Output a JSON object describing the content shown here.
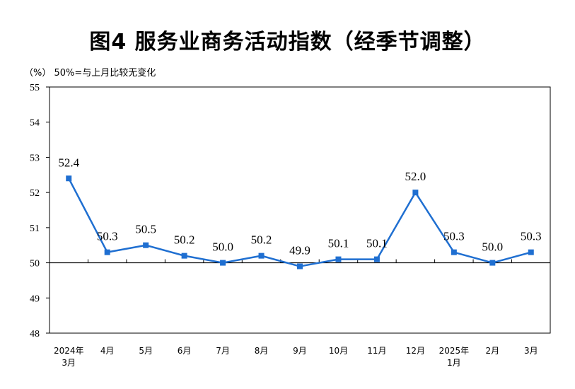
{
  "title": "图4  服务业商务活动指数（经季节调整）",
  "note_unit": "（%）",
  "note_text": "50%=与上月比较无变化",
  "colors": {
    "series": "#1f6fd1",
    "axis": "#000000"
  },
  "chart_data": {
    "type": "line",
    "categories": [
      [
        "2024年",
        "3月"
      ],
      [
        "4月"
      ],
      [
        "5月"
      ],
      [
        "6月"
      ],
      [
        "7月"
      ],
      [
        "8月"
      ],
      [
        "9月"
      ],
      [
        "10月"
      ],
      [
        "11月"
      ],
      [
        "12月"
      ],
      [
        "2025年",
        "1月"
      ],
      [
        "2月"
      ],
      [
        "3月"
      ]
    ],
    "values": [
      52.4,
      50.3,
      50.5,
      50.2,
      50.0,
      50.2,
      49.9,
      50.1,
      50.1,
      52.0,
      50.3,
      50.0,
      50.3
    ],
    "data_labels": [
      "52.4",
      "50.3",
      "50.5",
      "50.2",
      "50.0",
      "50.2",
      "49.9",
      "50.1",
      "50.1",
      "52.0",
      "50.3",
      "50.0",
      "50.3"
    ],
    "ylim": [
      48,
      55
    ],
    "yticks": [
      "48",
      "49",
      "50",
      "51",
      "52",
      "53",
      "54",
      "55"
    ],
    "reference_line": 50,
    "marker": "square",
    "grid": false,
    "legend": "none"
  }
}
